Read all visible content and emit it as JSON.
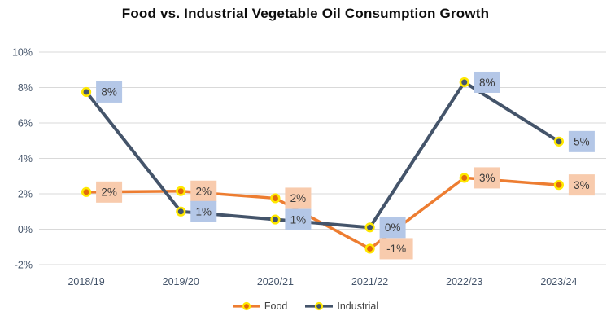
{
  "chart_data": {
    "type": "line",
    "title": "Food vs. Industrial Vegetable Oil Consumption Growth",
    "categories": [
      "2018/19",
      "2019/20",
      "2020/21",
      "2021/22",
      "2022/23",
      "2023/24"
    ],
    "y_ticks": {
      "labels": [
        "10%",
        "8%",
        "6%",
        "4%",
        "2%",
        "0%",
        "-2%"
      ],
      "values": [
        10,
        8,
        6,
        4,
        2,
        0,
        -2
      ]
    },
    "ylim": [
      -2,
      10
    ],
    "grid": "horizontal-only",
    "legend_position": "bottom",
    "series": [
      {
        "name": "Food",
        "color": "#ED7D31",
        "marker_fill": "#E26B0A",
        "label_bg": "#F8CBAD",
        "values": [
          2.1,
          2.15,
          1.75,
          -1.1,
          2.9,
          2.5
        ],
        "labels": [
          "2%",
          "2%",
          "2%",
          "-1%",
          "3%",
          "3%"
        ]
      },
      {
        "name": "Industrial",
        "color": "#44546A",
        "marker_fill": "#44546A",
        "label_bg": "#B4C7E7",
        "values": [
          7.75,
          1.0,
          0.55,
          0.1,
          8.3,
          4.95
        ],
        "labels": [
          "8%",
          "1%",
          "1%",
          "0%",
          "8%",
          "5%"
        ]
      }
    ],
    "style": {
      "marker_ring_color": "#FFE800",
      "grid_color": "#D9D9D9",
      "tick_color": "#44546A",
      "label_text_color": "#3B3B3B"
    }
  }
}
